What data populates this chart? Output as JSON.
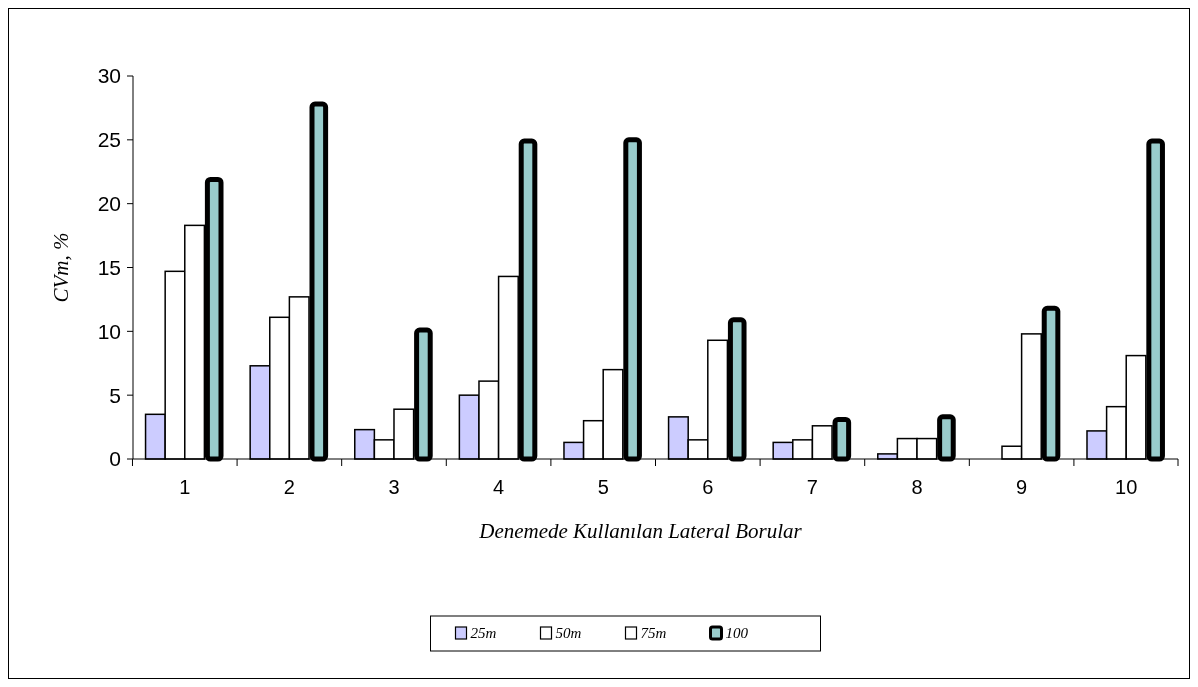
{
  "chart_data": {
    "type": "bar",
    "xlabel": "Denemede Kullanılan Lateral Borular",
    "ylabel": "CVm, %",
    "categories": [
      "1",
      "2",
      "3",
      "4",
      "5",
      "6",
      "7",
      "8",
      "9",
      "10"
    ],
    "series": [
      {
        "name": "25m",
        "color": "#ccccff",
        "values": [
          3.5,
          7.3,
          2.3,
          5.0,
          1.3,
          3.3,
          1.3,
          0.4,
          0,
          2.2
        ]
      },
      {
        "name": "50m",
        "color": "#ffffff",
        "values": [
          14.7,
          11.1,
          1.5,
          6.1,
          3.0,
          1.5,
          1.5,
          1.6,
          1.0,
          4.1
        ]
      },
      {
        "name": "75m",
        "color": "#ffffff",
        "values": [
          18.3,
          12.7,
          3.9,
          14.3,
          7.0,
          9.3,
          2.6,
          1.6,
          9.8,
          8.1
        ]
      },
      {
        "name": "100",
        "color": "#99cccc",
        "values": [
          21.9,
          27.8,
          10.1,
          24.9,
          25.0,
          10.9,
          3.1,
          3.3,
          11.8,
          24.9
        ]
      }
    ],
    "ylim": [
      0,
      30
    ],
    "yticks": [
      0,
      5,
      10,
      15,
      20,
      25,
      30
    ],
    "grid": false,
    "legend": "bottom"
  }
}
